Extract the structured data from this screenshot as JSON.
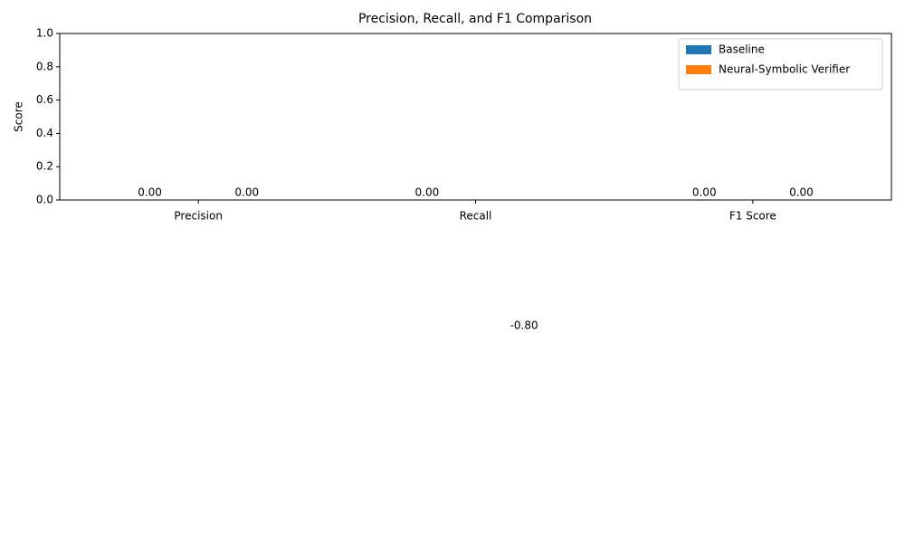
{
  "chart_data": {
    "type": "bar",
    "title": "Precision, Recall, and F1 Comparison",
    "y_label": "Score",
    "categories": [
      "Precision",
      "Recall",
      "F1 Score"
    ],
    "series": [
      {
        "name": "Baseline",
        "color": "#1f77b4",
        "values": [
          0,
          0,
          0
        ],
        "value_labels": [
          "0.00",
          "0.00",
          "0.00"
        ]
      },
      {
        "name": "Neural-Symbolic Verifier",
        "color": "#ff7f0e",
        "values": [
          0,
          -0.8,
          0
        ],
        "value_labels": [
          "0.00",
          "-0.80",
          "0.00"
        ]
      }
    ],
    "ylim": [
      0,
      1
    ],
    "yticks": [
      {
        "value": 0,
        "label": "0.0"
      },
      {
        "value": 0.2,
        "label": "0.2"
      },
      {
        "value": 0.4,
        "label": "0.4"
      },
      {
        "value": 0.6,
        "label": "0.6"
      },
      {
        "value": 0.8,
        "label": "0.8"
      },
      {
        "value": 1,
        "label": "1.0"
      }
    ],
    "legend": "upper right"
  }
}
